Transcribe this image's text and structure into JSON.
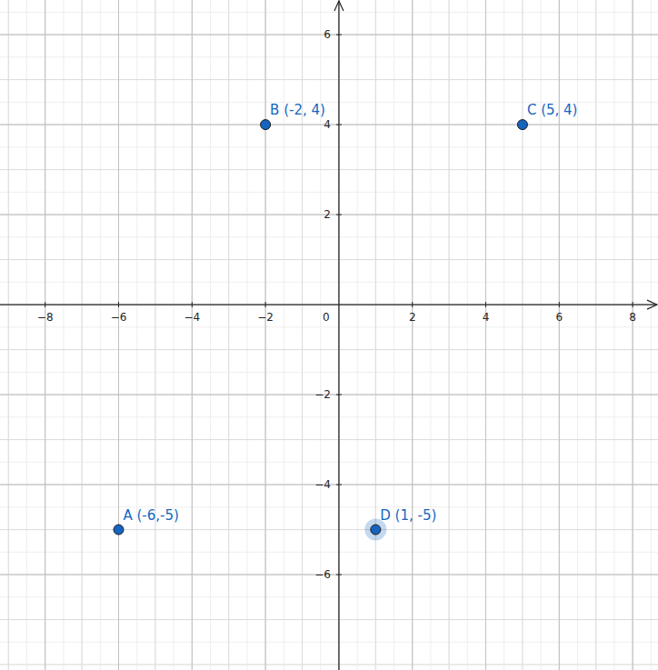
{
  "chart_data": {
    "type": "scatter",
    "x": [
      -6,
      -2,
      5,
      1
    ],
    "values": [
      -5,
      4,
      4,
      -5
    ],
    "point_labels": [
      "A (-6,-5)",
      "B (-2, 4)",
      "C (5, 4)",
      "D (1, -5)"
    ],
    "color": "#1565c0",
    "marker": "circle",
    "xlim": [
      -9.23,
      8.69
    ],
    "ylim": [
      -8.12,
      6.77
    ],
    "xticks": [
      -8,
      -6,
      -4,
      -2,
      0,
      2,
      4,
      6,
      8
    ],
    "yticks": [
      -6,
      -4,
      -2,
      2,
      4,
      6
    ],
    "grid": true
  }
}
